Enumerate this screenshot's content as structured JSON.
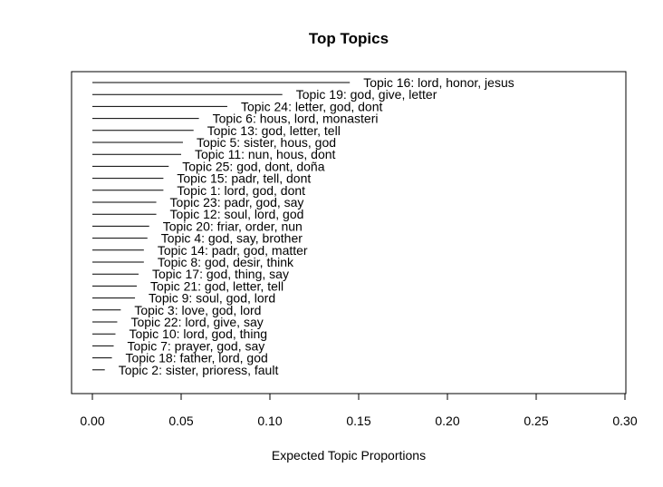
{
  "chart_data": {
    "type": "bar",
    "orientation": "horizontal",
    "title": "Top Topics",
    "xlabel": "Expected Topic Proportions",
    "ylabel": "",
    "xlim": [
      0,
      0.3
    ],
    "xticks": [
      "0.00",
      "0.05",
      "0.10",
      "0.15",
      "0.20",
      "0.25",
      "0.30"
    ],
    "xtick_values": [
      0,
      0.05,
      0.1,
      0.15,
      0.2,
      0.25,
      0.3
    ],
    "grid": false,
    "legend": "none",
    "categories": [
      "Topic 16: lord, honor, jesus",
      "Topic 19: god, give, letter",
      "Topic 24: letter, god, dont",
      "Topic 6: hous, lord, monasteri",
      "Topic 13: god, letter, tell",
      "Topic 5: sister, hous, god",
      "Topic 11: nun, hous, dont",
      "Topic 25: god, dont, doña",
      "Topic 15: padr, tell, dont",
      "Topic 1: lord, god, dont",
      "Topic 23: padr, god, say",
      "Topic 12: soul, lord, god",
      "Topic 20: friar, order, nun",
      "Topic 4: god, say, brother",
      "Topic 14: padr, god, matter",
      "Topic 8: god, desir, think",
      "Topic 17: god, thing, say",
      "Topic 21: god, letter, tell",
      "Topic 9: soul, god, lord",
      "Topic 3: love, god, lord",
      "Topic 22: lord, give, say",
      "Topic 10: lord, god, thing",
      "Topic 7: prayer, god, say",
      "Topic 18: father, lord, god",
      "Topic 2: sister, prioress, fault"
    ],
    "values": [
      0.145,
      0.107,
      0.076,
      0.06,
      0.057,
      0.051,
      0.05,
      0.043,
      0.04,
      0.04,
      0.036,
      0.036,
      0.032,
      0.031,
      0.029,
      0.029,
      0.026,
      0.025,
      0.024,
      0.016,
      0.014,
      0.013,
      0.012,
      0.011,
      0.007
    ]
  }
}
